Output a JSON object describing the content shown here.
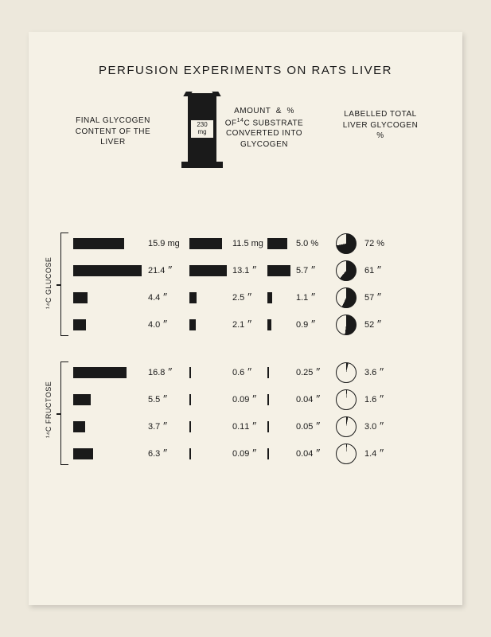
{
  "title": "PERFUSION EXPERIMENTS ON RATS LIVER",
  "headers": {
    "col1": "FINAL GLYCOGEN\nCONTENT OF THE\nLIVER",
    "col2_line1": "AMOUNT &  %",
    "col2_line2": "OF ¹⁴C SUBSTRATE",
    "col2_line3": "CONVERTED INTO",
    "col2_line4": "GLYCOGEN",
    "col3": "LABELLED TOTAL\nLIVER GLYCOGEN\n%"
  },
  "beaker": {
    "value": "230",
    "unit": "mg"
  },
  "groups": [
    {
      "label": "¹⁴C GLUCOSE",
      "start": 0,
      "count": 4
    },
    {
      "label": "¹⁴C FRUCTOSE",
      "start": 4,
      "count": 4
    }
  ],
  "bar_max_glycogen_mg": 22.0,
  "bar_max_amount_mg": 14.0,
  "bar_max_percent": 6.0,
  "rows": [
    {
      "glycogen_mg": 15.9,
      "glycogen_label": "15.9 mg",
      "amount_mg": 11.5,
      "amount_label": "11.5  mg",
      "pct": 5.0,
      "pct_label": "5.0   %",
      "pie_pct": 72,
      "pie_label": "72 %"
    },
    {
      "glycogen_mg": 21.4,
      "glycogen_label": "21.4   ״",
      "amount_mg": 13.1,
      "amount_label": "13.1    ״",
      "pct": 5.7,
      "pct_label": "5.7    ״",
      "pie_pct": 61,
      "pie_label": "61  ״"
    },
    {
      "glycogen_mg": 4.4,
      "glycogen_label": "4.4   ״",
      "amount_mg": 2.5,
      "amount_label": "2.5    ״",
      "pct": 1.1,
      "pct_label": "1.1    ״",
      "pie_pct": 57,
      "pie_label": "57  ״"
    },
    {
      "glycogen_mg": 4.0,
      "glycogen_label": "4.0   ״",
      "amount_mg": 2.1,
      "amount_label": "2.1    ״",
      "pct": 0.9,
      "pct_label": "0.9    ״",
      "pie_pct": 52,
      "pie_label": "52  ״"
    },
    {
      "glycogen_mg": 16.8,
      "glycogen_label": "16.8   ״",
      "amount_mg": 0.6,
      "amount_label": "0.6    ״",
      "pct": 0.25,
      "pct_label": "0.25   ״",
      "pie_pct": 3.6,
      "pie_label": "3.6  ״"
    },
    {
      "glycogen_mg": 5.5,
      "glycogen_label": "5.5   ״",
      "amount_mg": 0.09,
      "amount_label": "0.09   ״",
      "pct": 0.04,
      "pct_label": "0.04   ״",
      "pie_pct": 1.6,
      "pie_label": "1.6  ״"
    },
    {
      "glycogen_mg": 3.7,
      "glycogen_label": "3.7   ״",
      "amount_mg": 0.11,
      "amount_label": "0.11    ״",
      "pct": 0.05,
      "pct_label": "0.05   ״",
      "pie_pct": 3.0,
      "pie_label": "3.0  ״"
    },
    {
      "glycogen_mg": 6.3,
      "glycogen_label": "6.3   ״",
      "amount_mg": 0.09,
      "amount_label": "0.09   ״",
      "pct": 0.04,
      "pct_label": "0.04   ״",
      "pie_pct": 1.4,
      "pie_label": "1.4  ״"
    }
  ],
  "colors": {
    "page_bg": "#ede8dc",
    "card_bg": "#f5f1e6",
    "ink": "#1a1a1a"
  }
}
